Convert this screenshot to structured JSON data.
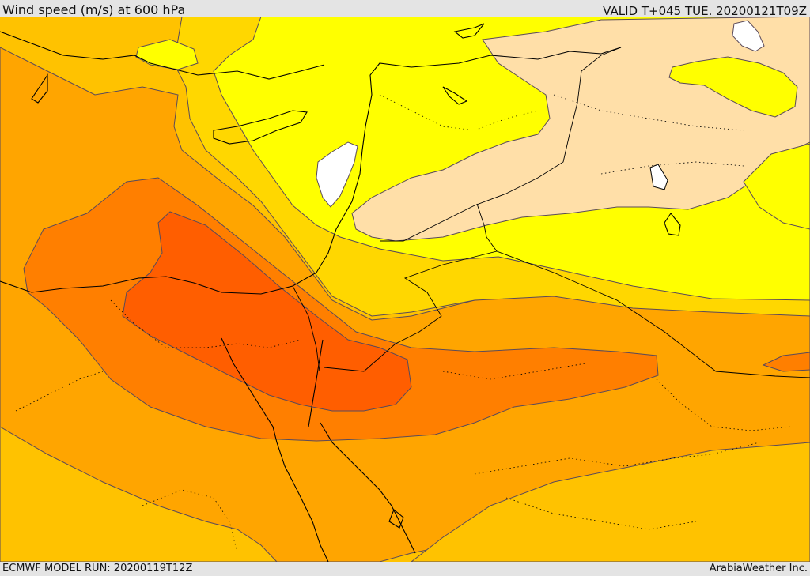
{
  "header": {
    "title": "Wind speed (m/s) at 600 hPa",
    "valid": "VALID T+045 TUE. 20200121T09Z"
  },
  "footer": {
    "model_run": "ECMWF MODEL RUN: 20200119T12Z",
    "credit": "ArabiaWeather Inc."
  },
  "colors": {
    "band_white": "#ffffff",
    "band_lightest": "#ffdfa8",
    "band_yellow": "#ffff00",
    "band_gold": "#ffd700",
    "band_amber": "#ffc200",
    "band_orange_light": "#ffa500",
    "band_orange": "#ff7f00",
    "band_red_orange": "#ff5e00",
    "coastline": "#000000",
    "contour": "#5a4a5a"
  }
}
